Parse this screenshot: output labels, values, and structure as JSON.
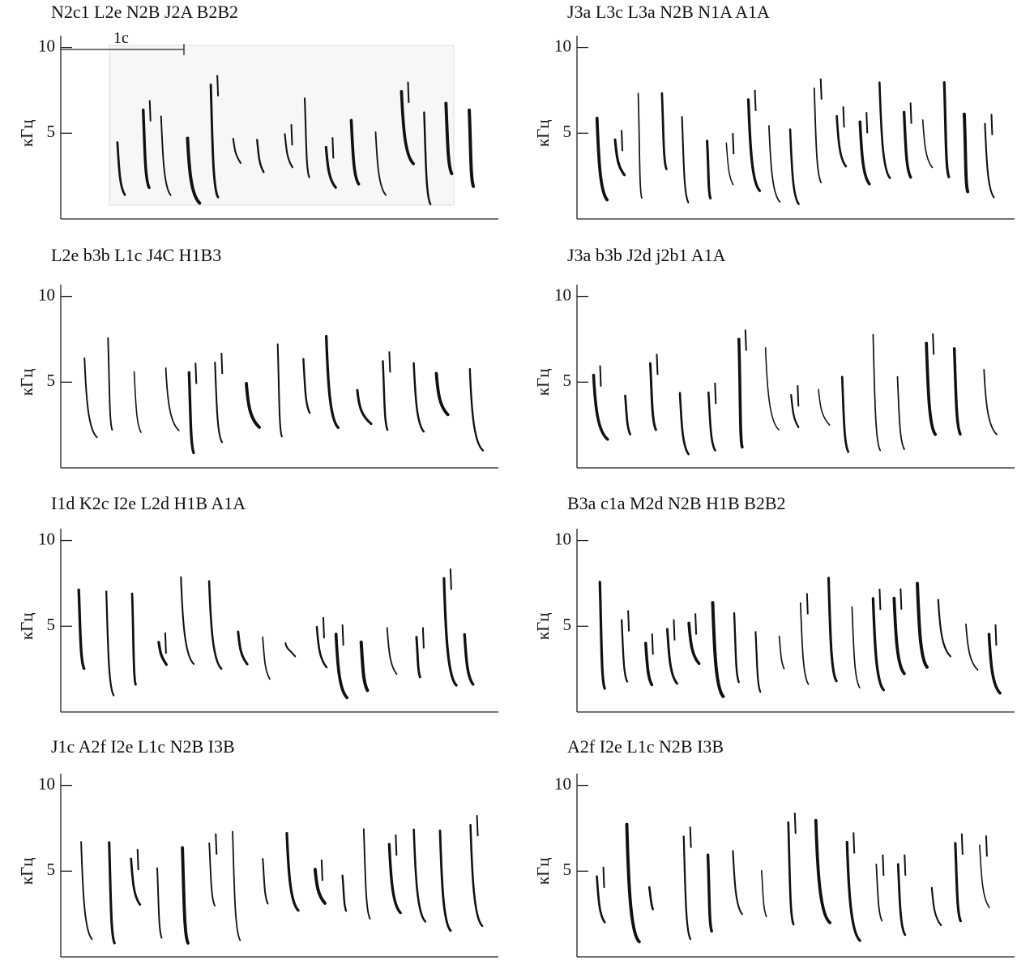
{
  "chart_data": [
    {
      "type": "spectrogram",
      "title": "N2c1 L2e N2B J2A B2B2",
      "ylabel": "кГц",
      "annotation": "1c",
      "ylim": [
        0,
        10.5
      ],
      "yticks": [
        5,
        10
      ]
    },
    {
      "type": "spectrogram",
      "title": "J3a L3c L3a N2B N1A A1A",
      "ylabel": "кГц",
      "ylim": [
        0,
        10.5
      ],
      "yticks": [
        5,
        10
      ]
    },
    {
      "type": "spectrogram",
      "title": "L2e b3b L1c J4C H1B3",
      "ylabel": "кГц",
      "ylim": [
        0,
        10.5
      ],
      "yticks": [
        5,
        10
      ]
    },
    {
      "type": "spectrogram",
      "title": "J3a b3b J2d j2b1 A1A",
      "ylabel": "кГц",
      "ylim": [
        0,
        10.5
      ],
      "yticks": [
        5,
        10
      ]
    },
    {
      "type": "spectrogram",
      "title": "I1d K2c I2e L2d H1B A1A",
      "ylabel": "кГц",
      "ylim": [
        0,
        10.5
      ],
      "yticks": [
        5,
        10
      ]
    },
    {
      "type": "spectrogram",
      "title": "B3a c1a M2d N2B H1B B2B2",
      "ylabel": "кГц",
      "ylim": [
        0,
        10.5
      ],
      "yticks": [
        5,
        10
      ]
    },
    {
      "type": "spectrogram",
      "title": "J1c A2f I2e L1c N2B I3B",
      "ylabel": "кГц",
      "ylim": [
        0,
        10.5
      ],
      "yticks": [
        5,
        10
      ]
    },
    {
      "type": "spectrogram",
      "title": "A2f I2e L1c N2B I3B",
      "ylabel": "кГц",
      "ylim": [
        0,
        10.5
      ],
      "yticks": [
        5,
        10
      ]
    }
  ]
}
